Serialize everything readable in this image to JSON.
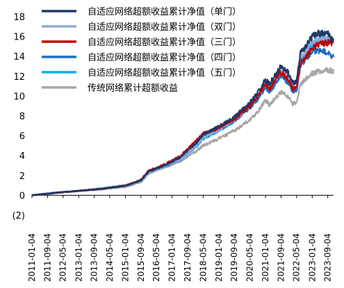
{
  "chart_data": {
    "type": "line",
    "ylim": [
      -2,
      18
    ],
    "y_ticks": [
      -2,
      0,
      2,
      4,
      6,
      8,
      10,
      12,
      14,
      16,
      18
    ],
    "y_tick_labels": [
      "(2)",
      "0",
      "2",
      "4",
      "6",
      "8",
      "10",
      "12",
      "14",
      "16",
      "18"
    ],
    "x_ticks": [
      "2011-01-04",
      "2011-09-04",
      "2012-05-04",
      "2013-01-04",
      "2013-09-04",
      "2014-05-04",
      "2015-01-04",
      "2015-09-04",
      "2016-05-04",
      "2017-01-04",
      "2017-09-04",
      "2018-05-04",
      "2019-01-04",
      "2019-09-04",
      "2020-05-04",
      "2021-01-04",
      "2021-09-04",
      "2022-05-04",
      "2023-01-04",
      "2023-09-04"
    ],
    "x_range": [
      "2011-01-04",
      "2023-12-04"
    ],
    "legend_position": "top-left",
    "grid": false,
    "series": [
      {
        "name": "自适应网络超额收益累计净值（单门）",
        "color": "#203864",
        "points": [
          [
            "2011-01-04",
            0
          ],
          [
            "2012-01-04",
            0.25
          ],
          [
            "2013-01-04",
            0.45
          ],
          [
            "2014-01-04",
            0.65
          ],
          [
            "2015-01-04",
            0.95
          ],
          [
            "2015-09-04",
            1.5
          ],
          [
            "2016-01-04",
            2.4
          ],
          [
            "2016-09-04",
            3.0
          ],
          [
            "2017-05-04",
            3.8
          ],
          [
            "2018-01-04",
            5.2
          ],
          [
            "2018-05-04",
            6.1
          ],
          [
            "2019-01-04",
            6.9
          ],
          [
            "2019-09-04",
            7.9
          ],
          [
            "2020-05-04",
            9.3
          ],
          [
            "2020-09-04",
            10.3
          ],
          [
            "2021-01-04",
            11.7
          ],
          [
            "2021-03-04",
            11.2
          ],
          [
            "2021-09-04",
            13.0
          ],
          [
            "2022-01-04",
            12.3
          ],
          [
            "2022-03-04",
            11.3
          ],
          [
            "2022-05-04",
            11.4
          ],
          [
            "2022-07-04",
            14.3
          ],
          [
            "2022-10-04",
            15.1
          ],
          [
            "2023-01-04",
            16.0
          ],
          [
            "2023-04-04",
            16.3
          ],
          [
            "2023-09-04",
            16.3
          ],
          [
            "2023-12-04",
            15.6
          ]
        ]
      },
      {
        "name": "自适应网络超额收益累计净值（双门）",
        "color": "#8faadc",
        "points": [
          [
            "2011-01-04",
            0
          ],
          [
            "2012-01-04",
            0.25
          ],
          [
            "2013-01-04",
            0.45
          ],
          [
            "2014-01-04",
            0.65
          ],
          [
            "2015-01-04",
            0.95
          ],
          [
            "2015-09-04",
            1.45
          ],
          [
            "2016-01-04",
            2.3
          ],
          [
            "2016-09-04",
            2.9
          ],
          [
            "2017-05-04",
            3.6
          ],
          [
            "2018-01-04",
            4.9
          ],
          [
            "2018-05-04",
            5.8
          ],
          [
            "2019-01-04",
            6.6
          ],
          [
            "2019-09-04",
            7.6
          ],
          [
            "2020-05-04",
            9.0
          ],
          [
            "2020-09-04",
            10.0
          ],
          [
            "2021-01-04",
            11.3
          ],
          [
            "2021-03-04",
            10.8
          ],
          [
            "2021-09-04",
            12.5
          ],
          [
            "2022-01-04",
            11.8
          ],
          [
            "2022-03-04",
            10.9
          ],
          [
            "2022-05-04",
            11.0
          ],
          [
            "2022-07-04",
            13.8
          ],
          [
            "2022-10-04",
            14.6
          ],
          [
            "2023-01-04",
            15.4
          ],
          [
            "2023-04-04",
            15.7
          ],
          [
            "2023-09-04",
            15.8
          ],
          [
            "2023-12-04",
            15.5
          ]
        ]
      },
      {
        "name": "自适应网络超额收益累计净值（三门）",
        "color": "#c00000",
        "points": [
          [
            "2011-01-04",
            0
          ],
          [
            "2012-01-04",
            0.25
          ],
          [
            "2013-01-04",
            0.45
          ],
          [
            "2014-01-04",
            0.65
          ],
          [
            "2015-01-04",
            1.0
          ],
          [
            "2015-09-04",
            1.55
          ],
          [
            "2016-01-04",
            2.5
          ],
          [
            "2016-09-04",
            3.1
          ],
          [
            "2017-05-04",
            3.9
          ],
          [
            "2018-01-04",
            5.4
          ],
          [
            "2018-05-04",
            6.2
          ],
          [
            "2019-01-04",
            6.8
          ],
          [
            "2019-09-04",
            7.7
          ],
          [
            "2020-05-04",
            9.0
          ],
          [
            "2020-09-04",
            9.9
          ],
          [
            "2021-01-04",
            11.2
          ],
          [
            "2021-03-04",
            10.7
          ],
          [
            "2021-09-04",
            12.4
          ],
          [
            "2022-01-04",
            11.6
          ],
          [
            "2022-03-04",
            10.7
          ],
          [
            "2022-05-04",
            10.8
          ],
          [
            "2022-07-04",
            13.3
          ],
          [
            "2022-10-04",
            14.0
          ],
          [
            "2023-01-04",
            14.8
          ],
          [
            "2023-04-04",
            15.2
          ],
          [
            "2023-09-04",
            15.4
          ],
          [
            "2023-12-04",
            15.3
          ]
        ]
      },
      {
        "name": "自适应网络超额收益累计净值（四门）",
        "color": "#1f6fc0",
        "points": [
          [
            "2011-01-04",
            0
          ],
          [
            "2012-01-04",
            0.25
          ],
          [
            "2013-01-04",
            0.45
          ],
          [
            "2014-01-04",
            0.65
          ],
          [
            "2015-01-04",
            0.95
          ],
          [
            "2015-09-04",
            1.45
          ],
          [
            "2016-01-04",
            2.35
          ],
          [
            "2016-09-04",
            2.9
          ],
          [
            "2017-05-04",
            3.6
          ],
          [
            "2018-01-04",
            4.9
          ],
          [
            "2018-05-04",
            5.8
          ],
          [
            "2019-01-04",
            6.6
          ],
          [
            "2019-09-04",
            7.5
          ],
          [
            "2020-05-04",
            8.8
          ],
          [
            "2020-09-04",
            9.7
          ],
          [
            "2021-01-04",
            10.9
          ],
          [
            "2021-03-04",
            10.4
          ],
          [
            "2021-09-04",
            12.0
          ],
          [
            "2022-01-04",
            11.3
          ],
          [
            "2022-03-04",
            10.4
          ],
          [
            "2022-05-04",
            10.5
          ],
          [
            "2022-07-04",
            13.1
          ],
          [
            "2022-10-04",
            13.8
          ],
          [
            "2023-01-04",
            14.5
          ],
          [
            "2023-04-04",
            14.6
          ],
          [
            "2023-09-04",
            14.4
          ],
          [
            "2023-12-04",
            13.9
          ]
        ]
      },
      {
        "name": "自适应网络超额收益累计净值（五门）",
        "color": "#00b0f0",
        "points": [
          [
            "2011-01-04",
            0
          ],
          [
            "2012-01-04",
            0.25
          ],
          [
            "2013-01-04",
            0.45
          ],
          [
            "2014-01-04",
            0.7
          ],
          [
            "2015-01-04",
            1.0
          ],
          [
            "2015-09-04",
            1.45
          ],
          [
            "2016-01-04",
            2.3
          ],
          [
            "2016-09-04",
            2.9
          ],
          [
            "2017-05-04",
            3.55
          ],
          [
            "2018-01-04",
            4.8
          ],
          [
            "2018-05-04",
            5.7
          ],
          [
            "2019-01-04",
            6.5
          ],
          [
            "2019-09-04",
            7.5
          ],
          [
            "2020-05-04",
            8.9
          ],
          [
            "2020-09-04",
            9.8
          ],
          [
            "2021-01-04",
            11.0
          ],
          [
            "2021-03-04",
            10.5
          ],
          [
            "2021-09-04",
            12.2
          ],
          [
            "2022-01-04",
            11.5
          ],
          [
            "2022-03-04",
            10.6
          ],
          [
            "2022-05-04",
            10.7
          ],
          [
            "2022-07-04",
            13.5
          ],
          [
            "2022-10-04",
            14.3
          ],
          [
            "2023-01-04",
            15.1
          ],
          [
            "2023-04-04",
            15.5
          ],
          [
            "2023-09-04",
            15.6
          ],
          [
            "2023-12-04",
            15.8
          ]
        ]
      },
      {
        "name": "传统网络累计超额收益",
        "color": "#a6a6a6",
        "points": [
          [
            "2011-01-04",
            0
          ],
          [
            "2012-01-04",
            0.25
          ],
          [
            "2013-01-04",
            0.45
          ],
          [
            "2014-01-04",
            0.6
          ],
          [
            "2015-01-04",
            0.85
          ],
          [
            "2015-09-04",
            1.3
          ],
          [
            "2016-01-04",
            2.2
          ],
          [
            "2016-09-04",
            2.8
          ],
          [
            "2017-05-04",
            3.4
          ],
          [
            "2018-01-04",
            4.4
          ],
          [
            "2018-05-04",
            5.0
          ],
          [
            "2019-01-04",
            5.7
          ],
          [
            "2019-09-04",
            6.5
          ],
          [
            "2020-05-04",
            7.6
          ],
          [
            "2020-09-04",
            8.4
          ],
          [
            "2021-01-04",
            9.6
          ],
          [
            "2021-03-04",
            9.1
          ],
          [
            "2021-09-04",
            10.4
          ],
          [
            "2022-01-04",
            9.9
          ],
          [
            "2022-03-04",
            9.2
          ],
          [
            "2022-05-04",
            9.3
          ],
          [
            "2022-07-04",
            11.2
          ],
          [
            "2022-10-04",
            11.8
          ],
          [
            "2023-01-04",
            12.3
          ],
          [
            "2023-04-04",
            12.5
          ],
          [
            "2023-09-04",
            12.6
          ],
          [
            "2023-12-04",
            12.5
          ]
        ]
      }
    ]
  }
}
